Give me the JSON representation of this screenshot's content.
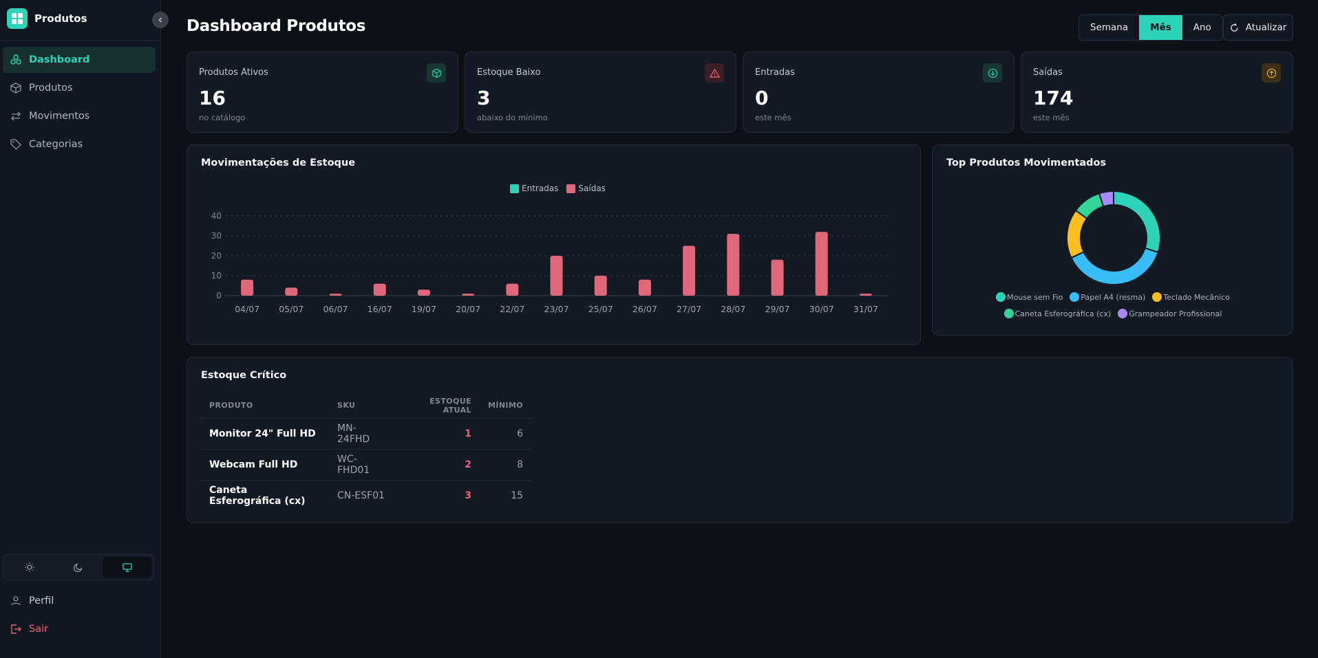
{
  "app": {
    "title": "Produtos"
  },
  "sidebar": {
    "items": [
      {
        "label": "Dashboard",
        "icon": "dashboard-icon",
        "active": true
      },
      {
        "label": "Produtos",
        "icon": "box-icon",
        "active": false
      },
      {
        "label": "Movimentos",
        "icon": "arrows-icon",
        "active": false
      },
      {
        "label": "Categorias",
        "icon": "tag-icon",
        "active": false
      }
    ],
    "theme_options": [
      "light",
      "dark",
      "system"
    ],
    "theme_active": "system",
    "profile_label": "Perfil",
    "logout_label": "Sair"
  },
  "header": {
    "title": "Dashboard Produtos",
    "periods": [
      "Semana",
      "Mês",
      "Ano"
    ],
    "active_period": "Mês",
    "refresh_label": "Atualizar"
  },
  "stats": [
    {
      "label": "Produtos Ativos",
      "value": "16",
      "sub": "no catálogo",
      "icon": "cube-icon",
      "color": "#2ed3b7"
    },
    {
      "label": "Estoque Baixo",
      "value": "3",
      "sub": "abaixo do mínimo",
      "icon": "warning-icon",
      "color": "#f06272"
    },
    {
      "label": "Entradas",
      "value": "0",
      "sub": "este mês",
      "icon": "arrow-down-circle-icon",
      "color": "#2ed3b7"
    },
    {
      "label": "Saídas",
      "value": "174",
      "sub": "este mês",
      "icon": "arrow-up-circle-icon",
      "color": "#f5b524"
    }
  ],
  "movements_chart": {
    "title": "Movimentações de Estoque",
    "chart_data": {
      "type": "bar",
      "categories": [
        "04/07",
        "05/07",
        "06/07",
        "16/07",
        "19/07",
        "20/07",
        "22/07",
        "23/07",
        "25/07",
        "26/07",
        "27/07",
        "28/07",
        "29/07",
        "30/07",
        "31/07"
      ],
      "series": [
        {
          "name": "Entradas",
          "color": "#2ed3b7",
          "values": [
            0,
            0,
            0,
            0,
            0,
            0,
            0,
            0,
            0,
            0,
            0,
            0,
            0,
            0,
            0
          ]
        },
        {
          "name": "Saídas",
          "color": "#e0677a",
          "values": [
            8,
            4,
            1,
            6,
            3,
            1,
            6,
            20,
            10,
            8,
            25,
            31,
            18,
            32,
            1
          ]
        }
      ],
      "yticks": [
        0,
        10,
        20,
        30,
        40
      ],
      "ylim": [
        0,
        40
      ],
      "legend": "top-center",
      "grid": true
    }
  },
  "top_products": {
    "title": "Top Produtos Movimentados",
    "chart_data": {
      "type": "pie",
      "labels": [
        "Mouse sem Fio",
        "Papel A4 (resma)",
        "Teclado Mecânico",
        "Caneta Esferográfica (cx)",
        "Grampeador Profissional"
      ],
      "values": [
        30,
        38,
        17,
        10,
        5
      ],
      "colors": [
        "#2ed3b7",
        "#38bdf8",
        "#fbbf24",
        "#34d399",
        "#a78bfa"
      ]
    }
  },
  "critical_stock": {
    "title": "Estoque Crítico",
    "columns": [
      "PRODUTO",
      "SKU",
      "ESTOQUE ATUAL",
      "MÍNIMO"
    ],
    "rows": [
      {
        "product": "Monitor 24\" Full HD",
        "sku": "MN-24FHD",
        "stock": "1",
        "min": "6"
      },
      {
        "product": "Webcam Full HD",
        "sku": "WC-FHD01",
        "stock": "2",
        "min": "8"
      },
      {
        "product": "Caneta Esferográfica (cx)",
        "sku": "CN-ESF01",
        "stock": "3",
        "min": "15"
      }
    ]
  }
}
